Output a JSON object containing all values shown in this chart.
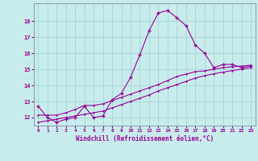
{
  "xlabel": "Windchill (Refroidissement éolien,°C)",
  "background_color": "#c8ecec",
  "line_color": "#990099",
  "grid_color": "#a8d8d8",
  "x_values": [
    0,
    1,
    2,
    3,
    4,
    5,
    6,
    7,
    8,
    9,
    10,
    11,
    12,
    13,
    14,
    15,
    16,
    17,
    18,
    19,
    20,
    21,
    22,
    23
  ],
  "y_main": [
    12.7,
    12.0,
    11.7,
    11.9,
    12.0,
    12.7,
    12.0,
    12.1,
    13.1,
    13.5,
    14.5,
    15.9,
    17.4,
    18.5,
    18.65,
    18.2,
    17.7,
    16.5,
    16.0,
    15.1,
    15.3,
    15.3,
    15.1,
    15.2
  ],
  "y_line1": [
    12.15,
    12.15,
    12.15,
    12.3,
    12.5,
    12.75,
    12.75,
    12.85,
    13.05,
    13.25,
    13.45,
    13.65,
    13.85,
    14.05,
    14.3,
    14.55,
    14.7,
    14.85,
    14.9,
    15.0,
    15.1,
    15.15,
    15.2,
    15.25
  ],
  "y_line2": [
    11.7,
    11.8,
    11.9,
    12.0,
    12.1,
    12.2,
    12.3,
    12.4,
    12.6,
    12.8,
    13.0,
    13.2,
    13.4,
    13.65,
    13.85,
    14.05,
    14.25,
    14.45,
    14.6,
    14.72,
    14.82,
    14.92,
    15.0,
    15.1
  ],
  "ylim": [
    11.5,
    19.1
  ],
  "yticks": [
    12,
    13,
    14,
    15,
    16,
    17,
    18
  ],
  "xlim": [
    -0.5,
    23.5
  ],
  "xticks": [
    0,
    1,
    2,
    3,
    4,
    5,
    6,
    7,
    8,
    9,
    10,
    11,
    12,
    13,
    14,
    15,
    16,
    17,
    18,
    19,
    20,
    21,
    22,
    23
  ]
}
